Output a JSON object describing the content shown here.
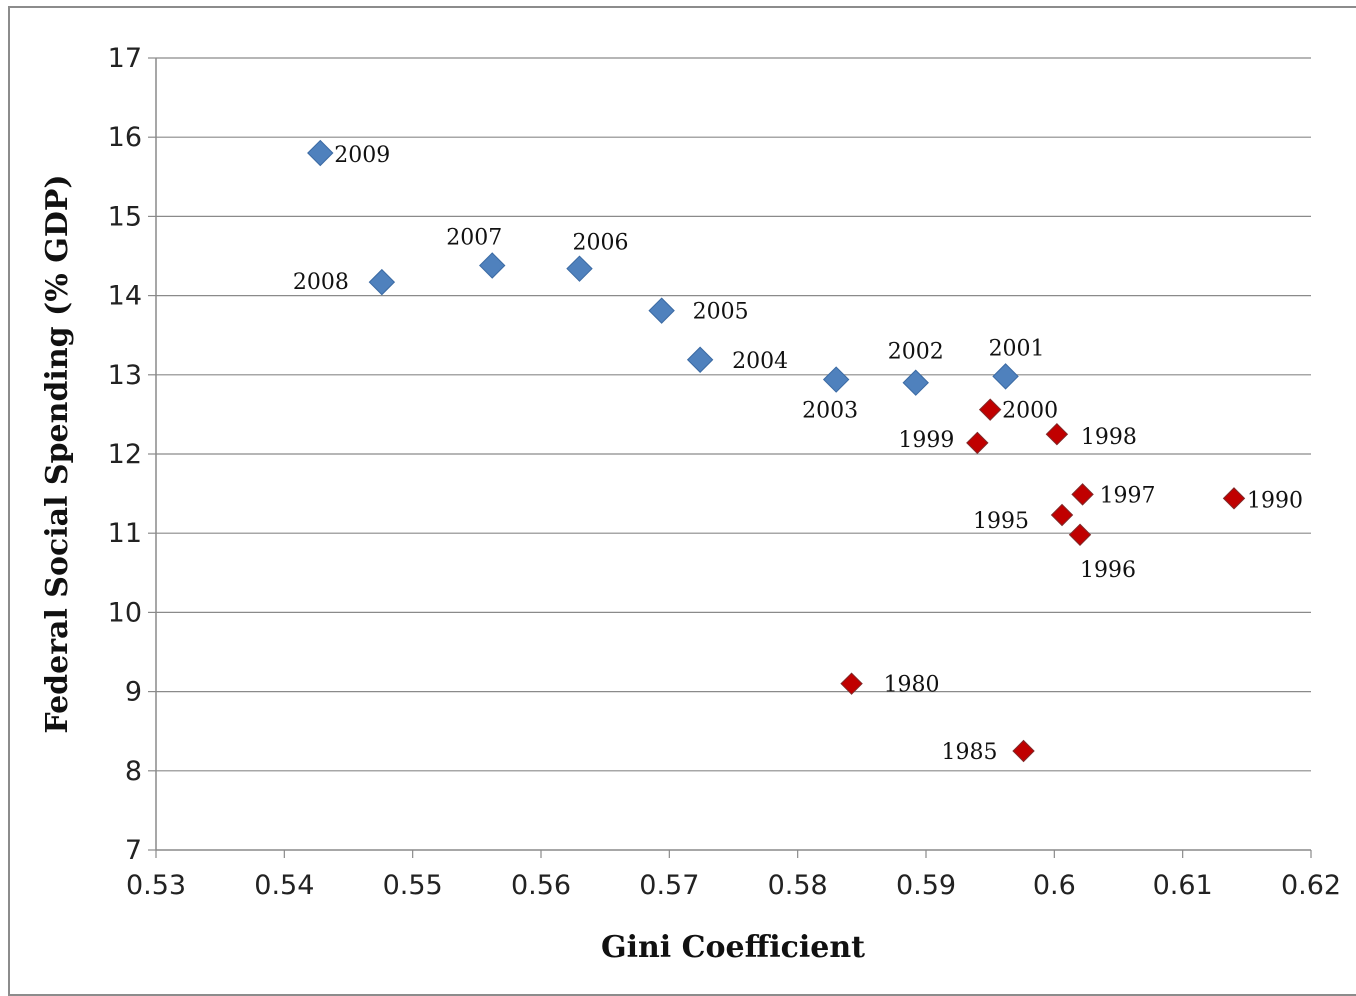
{
  "chart_data": {
    "type": "scatter",
    "title": "",
    "xlabel": "Gini Coefficient",
    "ylabel": "Federal Social Spending (% GDP)",
    "xlim": [
      0.53,
      0.62
    ],
    "ylim": [
      7,
      17
    ],
    "xticks": [
      "0.53",
      "0.54",
      "0.55",
      "0.56",
      "0.57",
      "0.58",
      "0.59",
      "0.6",
      "0.61",
      "0.62"
    ],
    "yticks": [
      "7",
      "8",
      "9",
      "10",
      "11",
      "12",
      "13",
      "14",
      "15",
      "16",
      "17"
    ],
    "grid": "horizontal",
    "legend": "none",
    "series": [
      {
        "color": "#4f81bd",
        "marker": "diamond",
        "points": [
          {
            "label": "2009",
            "x": 0.5428,
            "y": 15.8
          },
          {
            "label": "2008",
            "x": 0.5476,
            "y": 14.17
          },
          {
            "label": "2007",
            "x": 0.5562,
            "y": 14.38
          },
          {
            "label": "2006",
            "x": 0.563,
            "y": 14.34
          },
          {
            "label": "2005",
            "x": 0.5694,
            "y": 13.81
          },
          {
            "label": "2004",
            "x": 0.5724,
            "y": 13.19
          },
          {
            "label": "2003",
            "x": 0.583,
            "y": 12.94
          },
          {
            "label": "2002",
            "x": 0.5892,
            "y": 12.9
          },
          {
            "label": "2001",
            "x": 0.5962,
            "y": 12.98
          }
        ]
      },
      {
        "color": "#c00000",
        "marker": "diamond",
        "points": [
          {
            "label": "2000",
            "x": 0.595,
            "y": 12.56
          },
          {
            "label": "1999",
            "x": 0.594,
            "y": 12.14
          },
          {
            "label": "1998",
            "x": 0.6002,
            "y": 12.25
          },
          {
            "label": "1997",
            "x": 0.6022,
            "y": 11.49
          },
          {
            "label": "1995",
            "x": 0.6006,
            "y": 11.23
          },
          {
            "label": "1996",
            "x": 0.602,
            "y": 10.98
          },
          {
            "label": "1990",
            "x": 0.614,
            "y": 11.44
          },
          {
            "label": "1980",
            "x": 0.5842,
            "y": 9.1
          },
          {
            "label": "1985",
            "x": 0.5976,
            "y": 8.25
          }
        ]
      }
    ]
  }
}
